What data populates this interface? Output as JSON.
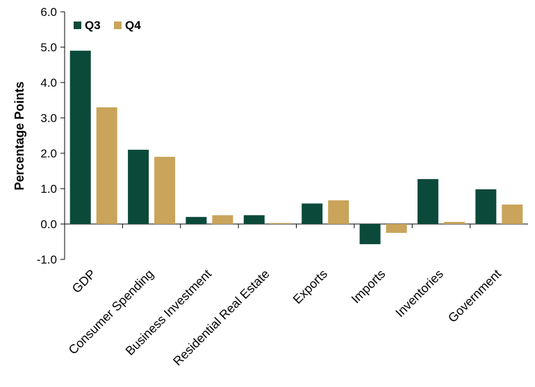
{
  "chart_data": {
    "type": "bar",
    "ylabel": "Percentage Points",
    "ylim": [
      -1.0,
      6.0
    ],
    "yticks": [
      "-1.0",
      "0.0",
      "1.0",
      "2.0",
      "3.0",
      "4.0",
      "5.0",
      "6.0"
    ],
    "categories": [
      "GDP",
      "Consumer Spending",
      "Business Investment",
      "Residential Real Estate",
      "Exports",
      "Imports",
      "Inventories",
      "Government"
    ],
    "series": [
      {
        "name": "Q3",
        "color": "#0b4a3a",
        "values": [
          4.9,
          2.1,
          0.2,
          0.25,
          0.58,
          -0.57,
          1.27,
          0.98
        ]
      },
      {
        "name": "Q4",
        "color": "#c9a45a",
        "values": [
          3.3,
          1.9,
          0.25,
          0.03,
          0.67,
          -0.25,
          0.06,
          0.55
        ]
      }
    ],
    "legend_position": "top-left",
    "grid": false
  }
}
